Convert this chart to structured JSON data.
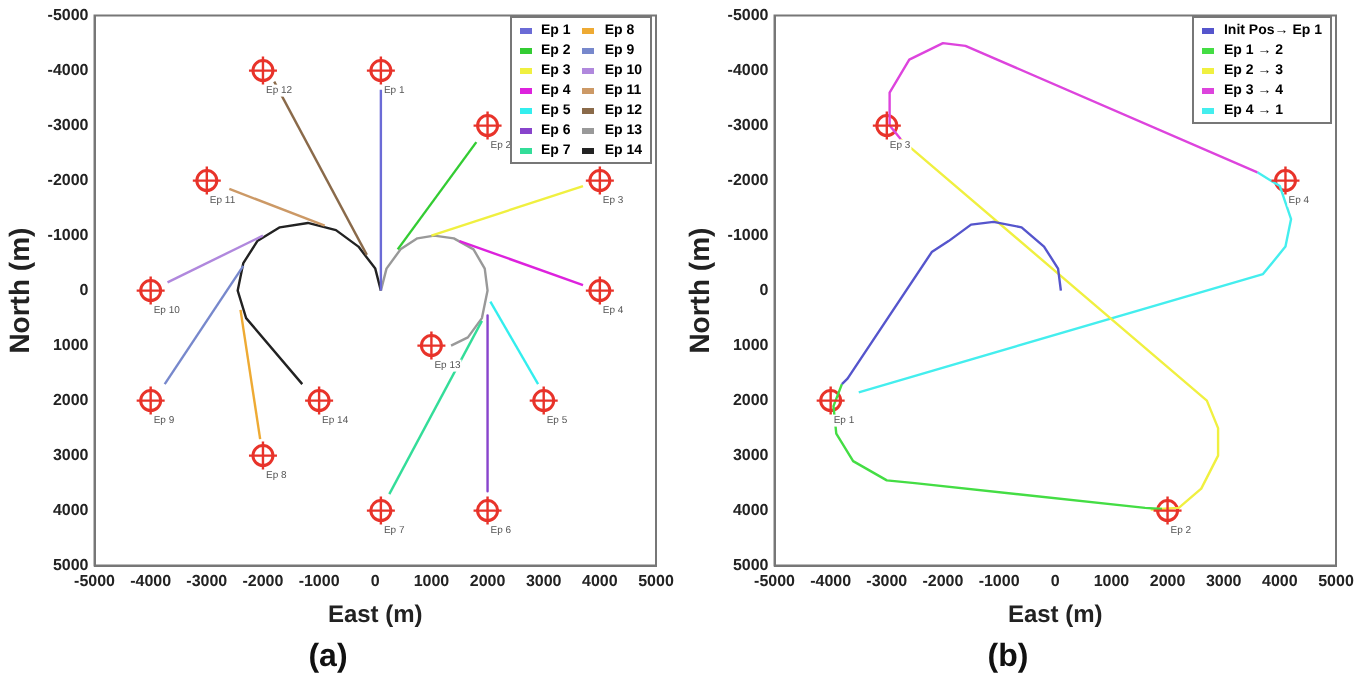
{
  "chart_data": [
    {
      "type": "line",
      "title": "(a)",
      "xlabel": "East (m)",
      "ylabel": "North (m)",
      "xlim": [
        -5000,
        5000
      ],
      "ylim": [
        5000,
        -5000
      ],
      "xticks": [
        -5000,
        -4000,
        -3000,
        -2000,
        -1000,
        0,
        1000,
        2000,
        3000,
        4000,
        5000
      ],
      "yticks": [
        -5000,
        -4000,
        -3000,
        -2000,
        -1000,
        0,
        1000,
        2000,
        3000,
        4000,
        5000
      ],
      "grid": false,
      "legend": "top right",
      "line_style": "solid",
      "series": [
        {
          "name": "Ep 1",
          "color": "#6b6bd6",
          "x": [
            100,
            100
          ],
          "values": [
            0,
            -3650
          ]
        },
        {
          "name": "Ep 2",
          "color": "#33cc33",
          "x": [
            400,
            1800
          ],
          "values": [
            -750,
            -2700
          ]
        },
        {
          "name": "Ep 3",
          "color": "#f0f040",
          "x": [
            1000,
            3700
          ],
          "values": [
            -1000,
            -1900
          ]
        },
        {
          "name": "Ep 4",
          "color": "#dd22dd",
          "x": [
            1500,
            3700
          ],
          "values": [
            -900,
            -100
          ]
        },
        {
          "name": "Ep 5",
          "color": "#33eeee",
          "x": [
            2050,
            2900
          ],
          "values": [
            200,
            1700
          ]
        },
        {
          "name": "Ep 6",
          "color": "#8844cc",
          "x": [
            2000,
            2000
          ],
          "values": [
            450,
            3650
          ]
        },
        {
          "name": "Ep 7",
          "color": "#33dd99",
          "x": [
            1900,
            250
          ],
          "values": [
            550,
            3700
          ]
        },
        {
          "name": "Ep 8",
          "color": "#eeaa33",
          "x": [
            -2400,
            -2050
          ],
          "values": [
            350,
            2700
          ]
        },
        {
          "name": "Ep 9",
          "color": "#7788cc",
          "x": [
            -2350,
            -3750
          ],
          "values": [
            -450,
            1700
          ]
        },
        {
          "name": "Ep 10",
          "color": "#b088dd",
          "x": [
            -2000,
            -3700
          ],
          "values": [
            -1000,
            -150
          ]
        },
        {
          "name": "Ep 11",
          "color": "#cc9966",
          "x": [
            -900,
            -2600
          ],
          "values": [
            -1180,
            -1850
          ]
        },
        {
          "name": "Ep 12",
          "color": "#8a6a4a",
          "x": [
            -150,
            -1800
          ],
          "values": [
            -650,
            -3800
          ]
        },
        {
          "name": "Ep 13",
          "color": "#999999",
          "x": [
            100,
            200,
            450,
            750,
            1050,
            1400,
            1750,
            1950,
            2000,
            1900,
            1650,
            1350
          ],
          "values": [
            0,
            -400,
            -750,
            -950,
            -1000,
            -950,
            -750,
            -400,
            0,
            500,
            850,
            1000
          ]
        },
        {
          "name": "Ep 14",
          "color": "#222222",
          "x": [
            100,
            0,
            -300,
            -700,
            -1200,
            -1700,
            -2100,
            -2350,
            -2450,
            -2300,
            -1300
          ],
          "values": [
            0,
            -400,
            -800,
            -1100,
            -1230,
            -1150,
            -900,
            -500,
            0,
            500,
            1700
          ]
        },
        {
          "type": "scatter",
          "color": "#e8332a",
          "marker": "circle",
          "x": [
            100,
            2000,
            4000,
            4000,
            3000,
            2000,
            100,
            -2000,
            -4000,
            -4000,
            -3000,
            -2000,
            1000,
            -1000
          ],
          "values": [
            -4000,
            -3000,
            -2000,
            0,
            2000,
            4000,
            4000,
            3000,
            2000,
            0,
            -2000,
            -4000,
            1000,
            2000
          ],
          "value_labels": [
            "Ep 1",
            "Ep 2",
            "Ep 3",
            "Ep 4",
            "Ep 5",
            "Ep 6",
            "Ep 7",
            "Ep 8",
            "Ep 9",
            "Ep 10",
            "Ep 11",
            "Ep 12",
            "Ep 13",
            "Ep 14"
          ]
        }
      ]
    },
    {
      "type": "line",
      "title": "(b)",
      "xlabel": "East (m)",
      "ylabel": "North (m)",
      "xlim": [
        -5000,
        5000
      ],
      "ylim": [
        5000,
        -5000
      ],
      "xticks": [
        -5000,
        -4000,
        -3000,
        -2000,
        -1000,
        0,
        1000,
        2000,
        3000,
        4000,
        5000
      ],
      "yticks": [
        -5000,
        -4000,
        -3000,
        -2000,
        -1000,
        0,
        1000,
        2000,
        3000,
        4000,
        5000
      ],
      "grid": false,
      "legend": "top right",
      "line_style": "solid",
      "series": [
        {
          "name": "Init Pos→ Ep 1",
          "color": "#5555cc",
          "x": [
            100,
            50,
            -200,
            -600,
            -1100,
            -1500,
            -1900,
            -2200,
            -3700,
            -3800
          ],
          "values": [
            0,
            -400,
            -800,
            -1150,
            -1250,
            -1200,
            -900,
            -700,
            1600,
            1700
          ]
        },
        {
          "name": "Ep 1 → 2",
          "color": "#44dd44",
          "x": [
            -3800,
            -3950,
            -3900,
            -3600,
            -3000,
            -2500,
            1600,
            1900
          ],
          "values": [
            1700,
            2100,
            2600,
            3100,
            3450,
            3500,
            3950,
            3970
          ]
        },
        {
          "name": "Ep 2 → 3",
          "color": "#f0f040",
          "x": [
            1700,
            2200,
            2600,
            2900,
            2900,
            2700,
            -2750
          ],
          "values": [
            3980,
            3950,
            3600,
            3000,
            2500,
            2000,
            -2750
          ]
        },
        {
          "name": "Ep 3 → 4",
          "color": "#dd44dd",
          "x": [
            -2750,
            -2950,
            -2950,
            -2600,
            -2000,
            -1600,
            3600
          ],
          "values": [
            -2750,
            -3000,
            -3600,
            -4200,
            -4500,
            -4450,
            -2150
          ]
        },
        {
          "name": "Ep 4 → 1",
          "color": "#44eeee",
          "x": [
            3600,
            4000,
            4200,
            4100,
            3700,
            -3500
          ],
          "values": [
            -2150,
            -1900,
            -1300,
            -800,
            -300,
            1850
          ]
        },
        {
          "type": "scatter",
          "color": "#e8332a",
          "marker": "circle",
          "x": [
            -4000,
            2000,
            -3000,
            4100
          ],
          "values": [
            2000,
            4000,
            -3000,
            -2000
          ],
          "value_labels": [
            "Ep 1",
            "Ep 2",
            "Ep 3",
            "Ep 4"
          ]
        }
      ]
    }
  ]
}
